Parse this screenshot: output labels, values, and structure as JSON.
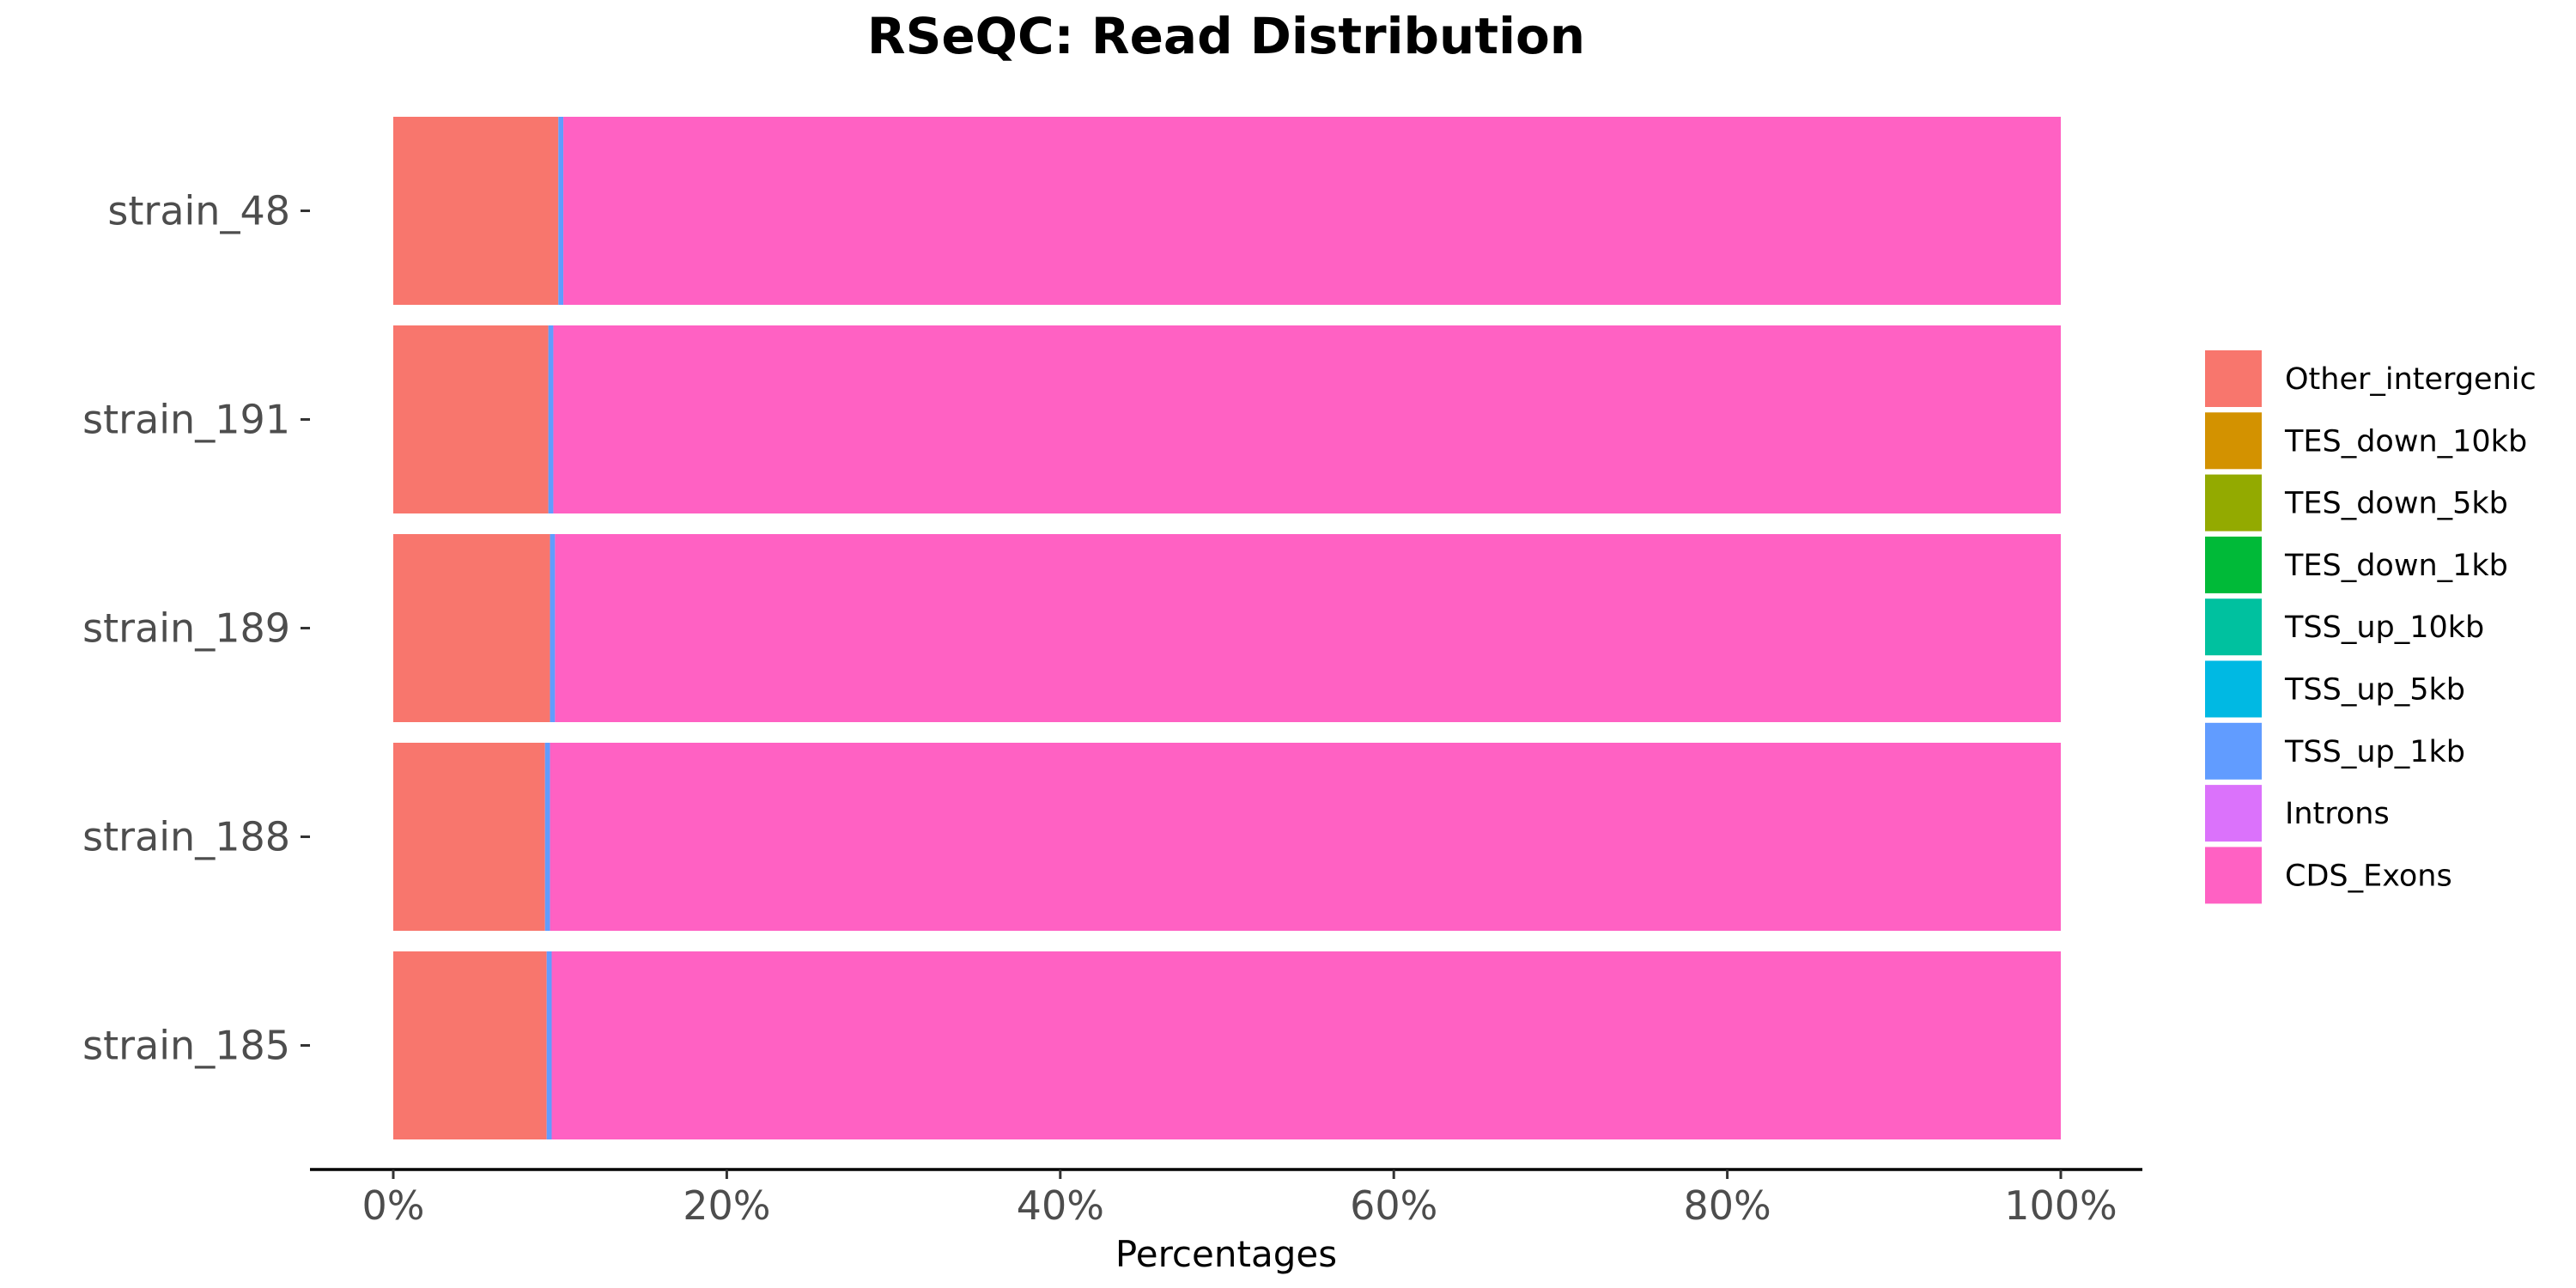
{
  "chart_data": {
    "type": "bar",
    "orientation": "horizontal",
    "stacked": true,
    "title": "RSeQC: Read Distribution",
    "xlabel": "Percentages",
    "ylabel": "",
    "xlim": [
      0,
      100
    ],
    "x_ticks": [
      "0%",
      "20%",
      "40%",
      "60%",
      "80%",
      "100%"
    ],
    "grid": false,
    "legend_position": "right",
    "categories": [
      "strain_48",
      "strain_191",
      "strain_189",
      "strain_188",
      "strain_185"
    ],
    "series": [
      {
        "name": "CDS_Exons",
        "color": "#FF61C3",
        "values": [
          89.8,
          90.4,
          90.3,
          90.6,
          90.5
        ]
      },
      {
        "name": "Introns",
        "color": "#DB72FB",
        "values": [
          0.0,
          0.0,
          0.0,
          0.0,
          0.0
        ]
      },
      {
        "name": "TSS_up_1kb",
        "color": "#619CFF",
        "values": [
          0.3,
          0.3,
          0.3,
          0.3,
          0.3
        ]
      },
      {
        "name": "TSS_up_5kb",
        "color": "#00B9E3",
        "values": [
          0.0,
          0.0,
          0.0,
          0.0,
          0.0
        ]
      },
      {
        "name": "TSS_up_10kb",
        "color": "#00C19F",
        "values": [
          0.0,
          0.0,
          0.0,
          0.0,
          0.0
        ]
      },
      {
        "name": "TES_down_1kb",
        "color": "#00BA38",
        "values": [
          0.0,
          0.0,
          0.0,
          0.0,
          0.0
        ]
      },
      {
        "name": "TES_down_5kb",
        "color": "#93AA00",
        "values": [
          0.0,
          0.0,
          0.0,
          0.0,
          0.0
        ]
      },
      {
        "name": "TES_down_10kb",
        "color": "#D39200",
        "values": [
          0.0,
          0.0,
          0.0,
          0.0,
          0.0
        ]
      },
      {
        "name": "Other_intergenic",
        "color": "#F8766D",
        "values": [
          9.9,
          9.3,
          9.4,
          9.1,
          9.2
        ]
      }
    ]
  }
}
